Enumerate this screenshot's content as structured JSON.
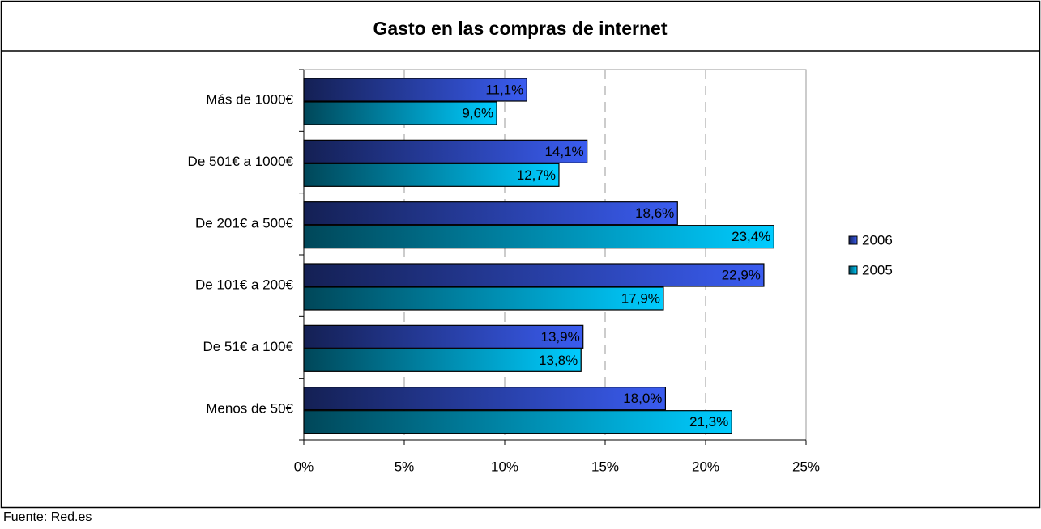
{
  "chart_data": {
    "type": "bar",
    "orientation": "horizontal",
    "title": "Gasto en las compras de internet",
    "source": "Fuente: Red.es",
    "categories": [
      "Más de 1000€",
      "De 501€ a 1000€",
      "De 201€ a 500€",
      "De 101€ a 200€",
      "De 51€ a 100€",
      "Menos de 50€"
    ],
    "series": [
      {
        "name": "2006",
        "color": "#3a5cf0",
        "values": [
          11.1,
          14.1,
          18.6,
          22.9,
          13.9,
          18.0
        ],
        "value_labels": [
          "11,1%",
          "14,1%",
          "18,6%",
          "22,9%",
          "13,9%",
          "18,0%"
        ]
      },
      {
        "name": "2005",
        "color": "#00ccff",
        "values": [
          9.6,
          12.7,
          23.4,
          17.9,
          13.8,
          21.3
        ],
        "value_labels": [
          "9,6%",
          "12,7%",
          "23,4%",
          "17,9%",
          "13,8%",
          "21,3%"
        ]
      }
    ],
    "xlim": [
      0,
      25
    ],
    "xticks": [
      {
        "value": 0,
        "label": "0%"
      },
      {
        "value": 5,
        "label": "5%"
      },
      {
        "value": 10,
        "label": "10%"
      },
      {
        "value": 15,
        "label": "15%"
      },
      {
        "value": 20,
        "label": "20%"
      },
      {
        "value": 25,
        "label": "25%"
      }
    ],
    "grid": true,
    "legend": "right"
  }
}
